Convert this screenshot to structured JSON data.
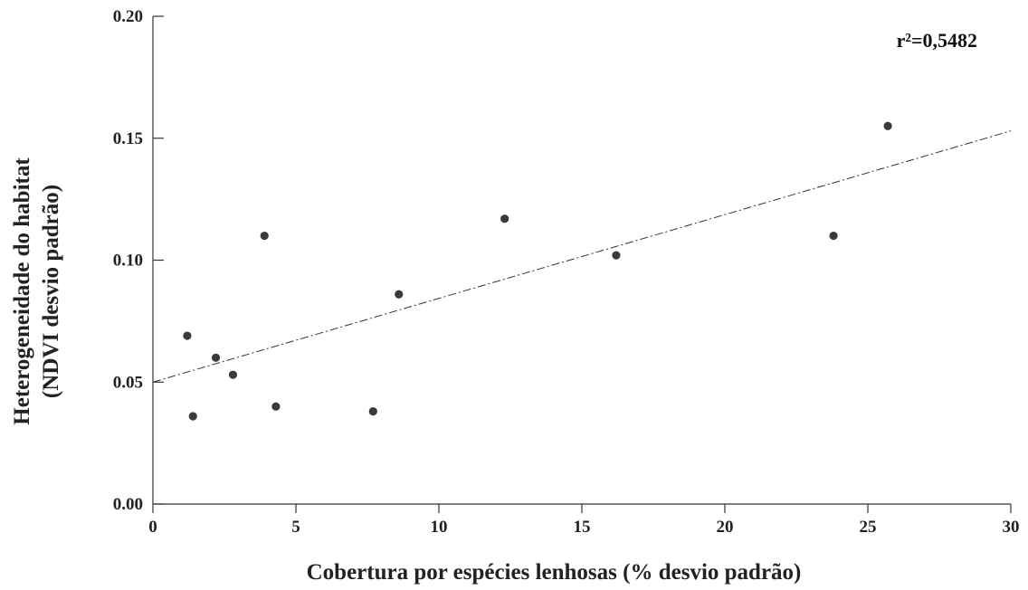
{
  "chart_data": {
    "type": "scatter",
    "title": "",
    "xlabel": "Cobertura por espécies lenhosas (% desvio padrão)",
    "ylabel_lines": [
      "Heterogeneidade do habitat",
      "(NDVI desvio padrão)"
    ],
    "xlim": [
      0,
      30
    ],
    "ylim": [
      0,
      0.2
    ],
    "x_ticks": [
      0,
      5,
      10,
      15,
      20,
      25,
      30
    ],
    "x_tick_labels": [
      "0",
      "5",
      "10",
      "15",
      "20",
      "25",
      "30"
    ],
    "y_ticks": [
      0,
      0.05,
      0.1,
      0.15,
      0.2
    ],
    "y_tick_labels": [
      "0.00",
      "0.05",
      "0.10",
      "0.15",
      "0.20"
    ],
    "grid": false,
    "legend": "none",
    "points": [
      {
        "x": 1.2,
        "y": 0.069
      },
      {
        "x": 1.4,
        "y": 0.036
      },
      {
        "x": 2.2,
        "y": 0.06
      },
      {
        "x": 2.8,
        "y": 0.053
      },
      {
        "x": 3.9,
        "y": 0.11
      },
      {
        "x": 4.3,
        "y": 0.04
      },
      {
        "x": 7.7,
        "y": 0.038
      },
      {
        "x": 8.6,
        "y": 0.086
      },
      {
        "x": 12.3,
        "y": 0.117
      },
      {
        "x": 16.2,
        "y": 0.102
      },
      {
        "x": 23.8,
        "y": 0.11
      },
      {
        "x": 25.7,
        "y": 0.155
      }
    ],
    "trendline": {
      "style": "dash-dot",
      "x": [
        0,
        30
      ],
      "y": [
        0.05,
        0.153
      ]
    },
    "annotation": "r²=0,5482",
    "colors": {
      "points": "#3a3a3a",
      "axes": "#333333",
      "trendline": "#333333"
    }
  }
}
